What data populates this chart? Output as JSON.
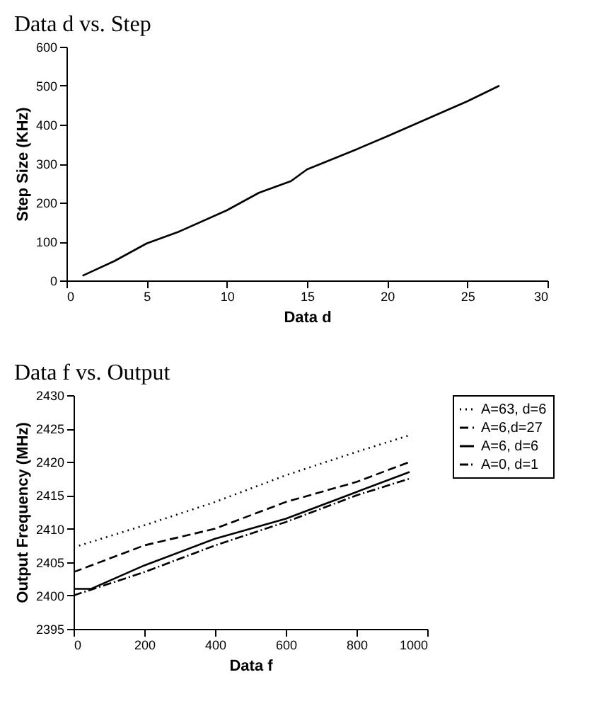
{
  "chart_data": [
    {
      "type": "line",
      "title": "Data d vs. Step",
      "xlabel": "Data d",
      "ylabel": "Step Size (KHz)",
      "xlim": [
        0,
        30
      ],
      "xticks": [
        0,
        5,
        10,
        15,
        20,
        25,
        30
      ],
      "ylim": [
        0,
        600
      ],
      "yticks": [
        0,
        100,
        200,
        300,
        400,
        500,
        600
      ],
      "grid": false,
      "legend": false,
      "marker": "none",
      "series": [
        {
          "color": "#000000",
          "line_style": "solid",
          "x": [
            1,
            3,
            5,
            7,
            10,
            12,
            14,
            15,
            18,
            20,
            25,
            27
          ],
          "values": [
            12,
            50,
            95,
            125,
            180,
            225,
            255,
            285,
            335,
            370,
            460,
            500
          ]
        }
      ]
    },
    {
      "type": "line",
      "title": "Data f vs. Output",
      "xlabel": "Data f",
      "ylabel": "Output Frequency (MHz)",
      "xlim": [
        0,
        1000
      ],
      "xticks": [
        0,
        200,
        400,
        600,
        800,
        1000
      ],
      "ylim": [
        2395,
        2430
      ],
      "yticks": [
        2395,
        2400,
        2405,
        2410,
        2415,
        2420,
        2425,
        2430
      ],
      "grid": false,
      "legend": "right",
      "marker": "none",
      "series": [
        {
          "name": "A=63, d=6",
          "color": "#000000",
          "line_style": "dotted",
          "x": [
            0,
            200,
            400,
            600,
            800,
            950
          ],
          "values": [
            2407.2,
            2410.5,
            2414,
            2418,
            2421.5,
            2424
          ]
        },
        {
          "name": "A=6,d=27",
          "color": "#000000",
          "line_style": "dashed",
          "x": [
            0,
            200,
            400,
            600,
            800,
            950
          ],
          "values": [
            2403.5,
            2407.5,
            2410,
            2414,
            2417,
            2420
          ]
        },
        {
          "name": "A=6, d=6",
          "color": "#000000",
          "line_style": "solid",
          "x": [
            0,
            50,
            200,
            400,
            600,
            800,
            950
          ],
          "values": [
            2401,
            2401,
            2404.5,
            2408.5,
            2411.5,
            2415.5,
            2418.5
          ]
        },
        {
          "name": "A=0, d=1",
          "color": "#000000",
          "line_style": "dashdot",
          "x": [
            0,
            200,
            400,
            600,
            800,
            950
          ],
          "values": [
            2400,
            2403.5,
            2407.5,
            2411,
            2415,
            2417.5
          ]
        }
      ]
    }
  ]
}
